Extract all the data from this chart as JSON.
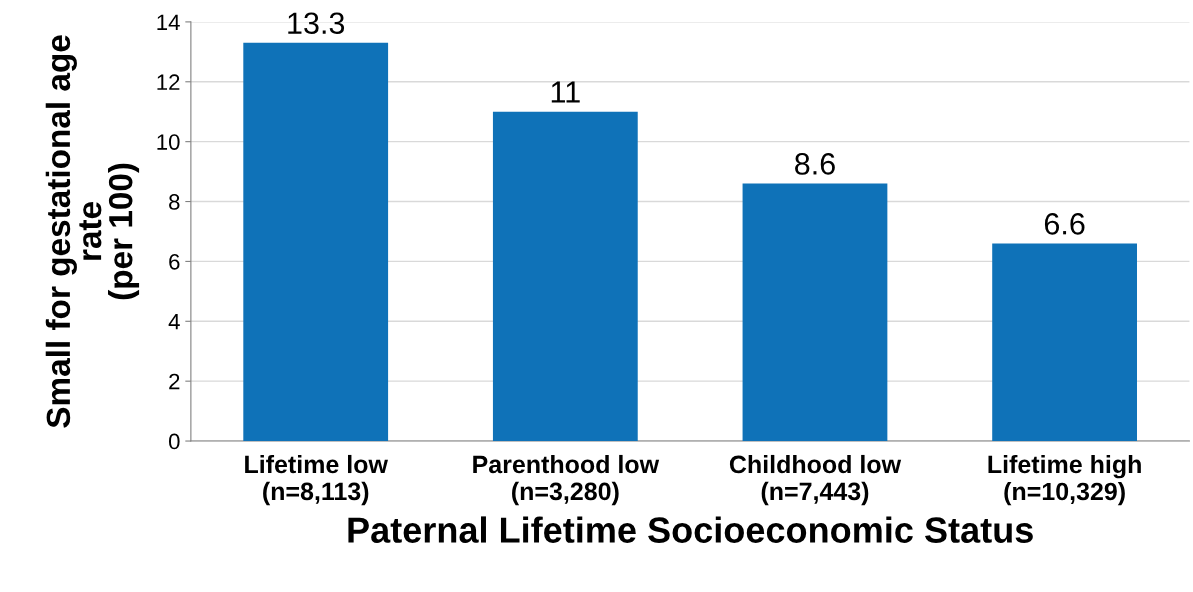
{
  "chart_data": {
    "type": "bar",
    "categories": [
      "Lifetime low\n(n=8,113)",
      "Parenthood low\n(n=3,280)",
      "Childhood low\n(n=7,443)",
      "Lifetime high\n(n=10,329)"
    ],
    "values": [
      13.3,
      11,
      8.6,
      6.6
    ],
    "color": "#0f72b8",
    "xlabel": "Paternal Lifetime Socioeconomic Status",
    "ylabel": "Small for gestational age\nrate\n(per 100)",
    "ylim": [
      0,
      14
    ],
    "yticks": [
      0,
      2,
      4,
      6,
      8,
      10,
      12,
      14
    ],
    "grid": "y",
    "data_labels": true
  }
}
